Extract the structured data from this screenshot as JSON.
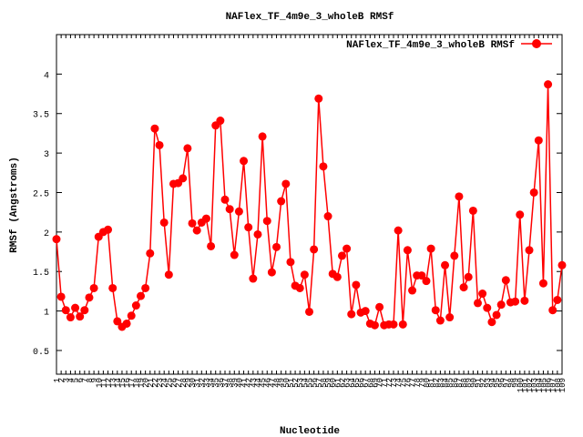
{
  "chart_data": {
    "type": "line",
    "title": "NAFlex_TF_4m9e_3_wholeB RMSf",
    "xlabel": "Nucleotide",
    "ylabel": "RMSf (Angstroms)",
    "categories": [
      "1",
      "2",
      "3",
      "4",
      "5",
      "6",
      "7",
      "8",
      "9",
      "10",
      "11",
      "12",
      "13",
      "14",
      "15",
      "16",
      "17",
      "18",
      "19",
      "20",
      "21",
      "22",
      "23",
      "24",
      "25",
      "26",
      "27",
      "28",
      "29",
      "30",
      "31",
      "32",
      "33",
      "34",
      "35",
      "36",
      "37",
      "38",
      "39",
      "40",
      "41",
      "42",
      "43",
      "44",
      "45",
      "46",
      "47",
      "48",
      "49",
      "50",
      "51",
      "52",
      "53",
      "54",
      "55",
      "56",
      "57",
      "58",
      "59",
      "60",
      "61",
      "62",
      "63",
      "64",
      "65",
      "66",
      "67",
      "68",
      "69",
      "70",
      "71",
      "72",
      "73",
      "74",
      "75",
      "76",
      "77",
      "78",
      "79",
      "80",
      "81",
      "82",
      "83",
      "84",
      "85",
      "86",
      "87",
      "88",
      "89",
      "90",
      "91",
      "92",
      "93",
      "94",
      "95",
      "96",
      "97",
      "98",
      "99",
      "100",
      "101",
      "102",
      "103",
      "104",
      "105",
      "106",
      "107",
      "108",
      "109"
    ],
    "series": [
      {
        "name": "NAFlex_TF_4m9e_3_wholeB RMSf",
        "color": "#ff0000",
        "values": [
          1.91,
          1.18,
          1.01,
          0.92,
          1.04,
          0.93,
          1.01,
          1.17,
          1.29,
          1.94,
          2.0,
          2.03,
          1.29,
          0.87,
          0.8,
          0.84,
          0.94,
          1.07,
          1.19,
          1.29,
          1.73,
          3.31,
          3.1,
          2.12,
          1.46,
          2.61,
          2.62,
          2.68,
          3.06,
          2.11,
          2.02,
          2.12,
          2.17,
          1.82,
          3.35,
          3.41,
          2.41,
          2.29,
          1.71,
          2.26,
          2.9,
          2.06,
          1.41,
          1.97,
          3.21,
          2.14,
          1.49,
          1.81,
          2.39,
          2.61,
          1.62,
          1.32,
          1.29,
          1.46,
          0.99,
          1.78,
          3.69,
          2.83,
          2.2,
          1.47,
          1.43,
          1.7,
          1.79,
          0.96,
          1.33,
          0.98,
          1.0,
          0.84,
          0.82,
          1.05,
          0.82,
          0.83,
          0.83,
          2.02,
          0.83,
          1.77,
          1.26,
          1.45,
          1.45,
          1.38,
          1.79,
          1.01,
          0.88,
          1.58,
          0.92,
          1.7,
          2.45,
          1.3,
          1.43,
          2.27,
          1.1,
          1.22,
          1.04,
          0.86,
          0.95,
          1.08,
          1.39,
          1.11,
          1.12,
          2.22,
          1.13,
          1.77,
          2.5,
          3.16,
          1.35,
          3.87,
          1.01,
          1.14,
          1.58
        ]
      }
    ],
    "ylim": [
      0.2,
      4.5
    ],
    "yticks": [
      0.5,
      1,
      1.5,
      2,
      2.5,
      3,
      3.5,
      4
    ],
    "legend": "top-right"
  }
}
